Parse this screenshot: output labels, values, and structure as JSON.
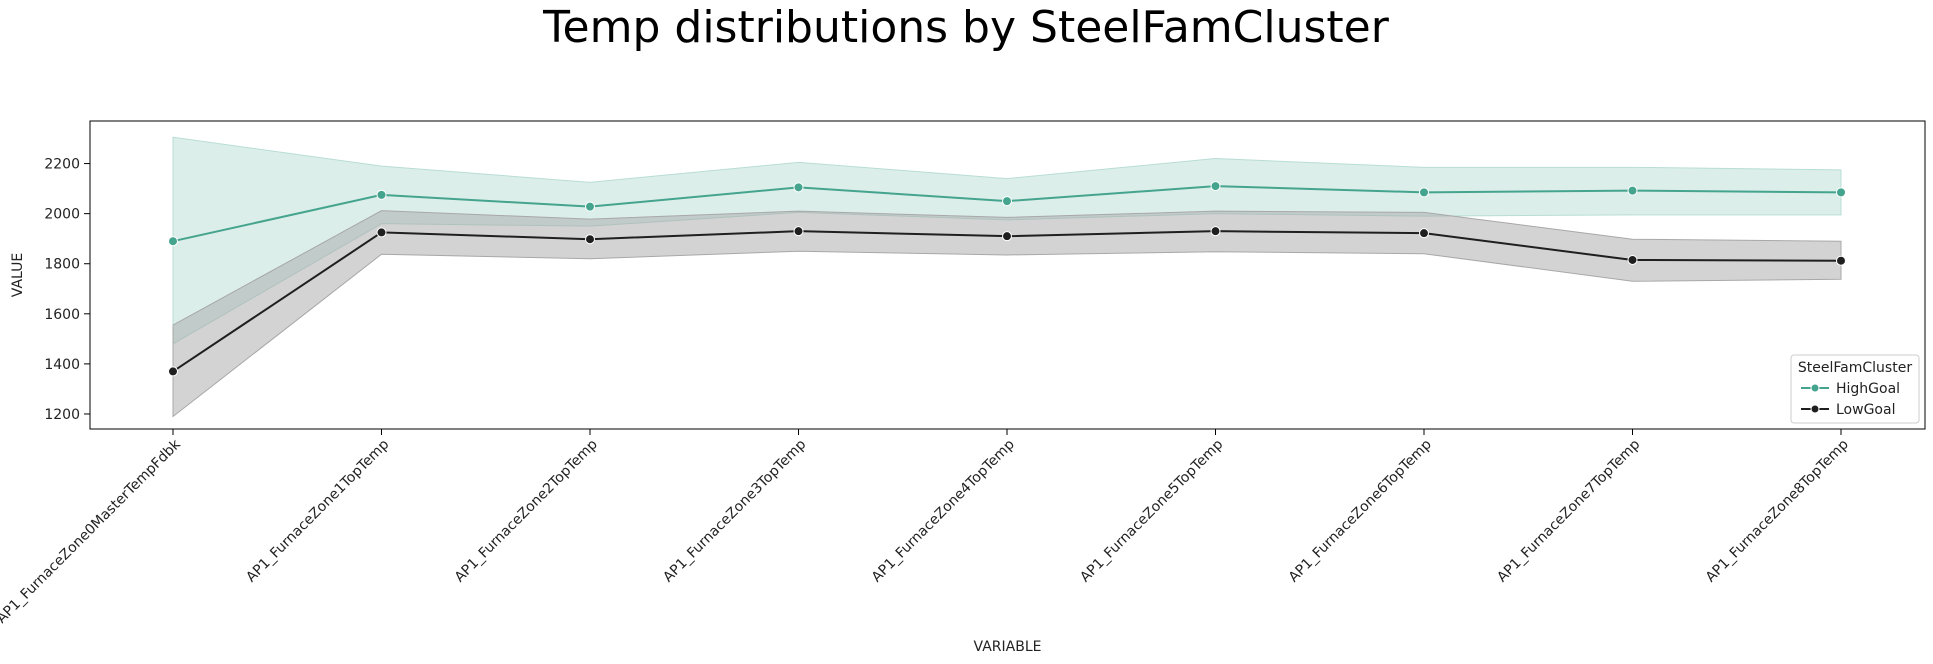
{
  "chart_data": {
    "type": "line",
    "title": "Temp distributions by SteelFamCluster",
    "xlabel": "VARIABLE",
    "ylabel": "VALUE",
    "categories": [
      "AP1_FurnaceZone0MasterTempFdbk",
      "AP1_FurnaceZone1TopTemp",
      "AP1_FurnaceZone2TopTemp",
      "AP1_FurnaceZone3TopTemp",
      "AP1_FurnaceZone4TopTemp",
      "AP1_FurnaceZone5TopTemp",
      "AP1_FurnaceZone6TopTemp",
      "AP1_FurnaceZone7TopTemp",
      "AP1_FurnaceZone8TopTemp"
    ],
    "ylim": [
      1140,
      2370
    ],
    "yticks": [
      1200,
      1400,
      1600,
      1800,
      2000,
      2200
    ],
    "grid": false,
    "legend": {
      "title": "SteelFamCluster",
      "position": "lower-right"
    },
    "series": [
      {
        "name": "HighGoal",
        "color": "#45a48d",
        "band_color": "#b8ddd5",
        "values": [
          1890,
          2075,
          2028,
          2105,
          2050,
          2110,
          2085,
          2092,
          2085
        ],
        "lower": [
          1480,
          1960,
          1950,
          2005,
          1975,
          2000,
          1990,
          1995,
          1995
        ],
        "upper": [
          2305,
          2190,
          2125,
          2205,
          2140,
          2220,
          2185,
          2185,
          2175
        ]
      },
      {
        "name": "LowGoal",
        "color": "#1f1f1f",
        "band_color": "#a8a8a8",
        "values": [
          1370,
          1925,
          1898,
          1930,
          1910,
          1930,
          1922,
          1815,
          1812
        ],
        "lower": [
          1190,
          1838,
          1820,
          1850,
          1835,
          1848,
          1840,
          1730,
          1738
        ],
        "upper": [
          1555,
          2012,
          1978,
          2010,
          1985,
          2010,
          2005,
          1898,
          1890
        ]
      }
    ]
  }
}
